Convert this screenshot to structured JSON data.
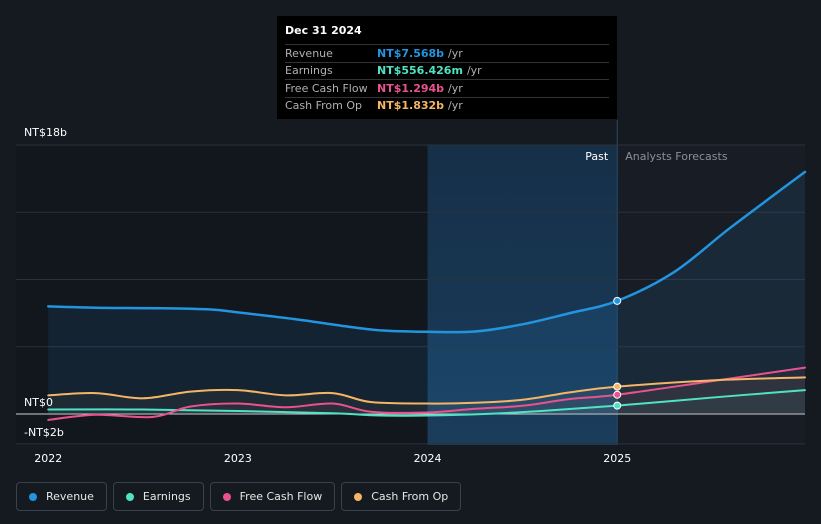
{
  "tooltip": {
    "date": "Dec 31 2024",
    "rows": [
      {
        "name": "Revenue",
        "value": "NT$7.568b",
        "unit": "/yr",
        "color": "#2394df"
      },
      {
        "name": "Earnings",
        "value": "NT$556.426m",
        "unit": "/yr",
        "color": "#4fe3c3"
      },
      {
        "name": "Free Cash Flow",
        "value": "NT$1.294b",
        "unit": "/yr",
        "color": "#e8538f"
      },
      {
        "name": "Cash From Op",
        "value": "NT$1.832b",
        "unit": "/yr",
        "color": "#f5b567"
      }
    ]
  },
  "period_labels": {
    "past": "Past",
    "forecast": "Analysts Forecasts"
  },
  "legend": [
    {
      "label": "Revenue",
      "color": "#2394df"
    },
    {
      "label": "Earnings",
      "color": "#4fe3c3"
    },
    {
      "label": "Free Cash Flow",
      "color": "#e8538f"
    },
    {
      "label": "Cash From Op",
      "color": "#f5b567"
    }
  ],
  "chart_data": {
    "type": "line",
    "y_tick_labels": [
      {
        "value": 18,
        "label": "NT$18b"
      },
      {
        "value": 0,
        "label": "NT$0"
      },
      {
        "value": -2,
        "label": "-NT$2b"
      }
    ],
    "x_tick_labels": [
      {
        "value": 2022,
        "label": "2022"
      },
      {
        "value": 2023,
        "label": "2023"
      },
      {
        "value": 2024,
        "label": "2024"
      },
      {
        "value": 2025,
        "label": "2025"
      }
    ],
    "xlim": [
      2021.83,
      2025.99
    ],
    "ylim": [
      -2,
      18
    ],
    "past_end": 2025.0,
    "highlight_start": 2024.0,
    "grid": true,
    "series": [
      {
        "name": "Revenue",
        "color": "#2394df",
        "points": [
          [
            2022.0,
            7.2
          ],
          [
            2022.3,
            7.1
          ],
          [
            2022.6,
            7.08
          ],
          [
            2022.85,
            7.0
          ],
          [
            2023.0,
            6.8
          ],
          [
            2023.3,
            6.35
          ],
          [
            2023.55,
            5.9
          ],
          [
            2023.75,
            5.6
          ],
          [
            2024.0,
            5.5
          ],
          [
            2024.25,
            5.52
          ],
          [
            2024.5,
            6.0
          ],
          [
            2024.75,
            6.75
          ],
          [
            2025.0,
            7.57
          ],
          [
            2025.3,
            9.5
          ],
          [
            2025.6,
            12.5
          ],
          [
            2025.99,
            16.2
          ]
        ]
      },
      {
        "name": "Earnings",
        "color": "#4fe3c3",
        "points": [
          [
            2022.0,
            0.3
          ],
          [
            2022.5,
            0.3
          ],
          [
            2023.0,
            0.2
          ],
          [
            2023.5,
            0.05
          ],
          [
            2023.75,
            -0.1
          ],
          [
            2024.0,
            -0.1
          ],
          [
            2024.3,
            0.0
          ],
          [
            2024.6,
            0.2
          ],
          [
            2025.0,
            0.56
          ],
          [
            2025.5,
            1.1
          ],
          [
            2025.99,
            1.6
          ]
        ]
      },
      {
        "name": "Free Cash Flow",
        "color": "#e8538f",
        "points": [
          [
            2022.0,
            -0.4
          ],
          [
            2022.25,
            -0.05
          ],
          [
            2022.55,
            -0.2
          ],
          [
            2022.75,
            0.5
          ],
          [
            2023.0,
            0.7
          ],
          [
            2023.25,
            0.45
          ],
          [
            2023.5,
            0.7
          ],
          [
            2023.7,
            0.15
          ],
          [
            2024.0,
            0.1
          ],
          [
            2024.25,
            0.35
          ],
          [
            2024.5,
            0.55
          ],
          [
            2024.75,
            1.0
          ],
          [
            2025.0,
            1.29
          ],
          [
            2025.5,
            2.2
          ],
          [
            2025.99,
            3.1
          ]
        ]
      },
      {
        "name": "Cash From Op",
        "color": "#f5b567",
        "points": [
          [
            2022.0,
            1.25
          ],
          [
            2022.25,
            1.4
          ],
          [
            2022.5,
            1.05
          ],
          [
            2022.75,
            1.5
          ],
          [
            2023.0,
            1.6
          ],
          [
            2023.25,
            1.25
          ],
          [
            2023.5,
            1.4
          ],
          [
            2023.7,
            0.8
          ],
          [
            2024.0,
            0.7
          ],
          [
            2024.25,
            0.75
          ],
          [
            2024.5,
            0.95
          ],
          [
            2024.75,
            1.45
          ],
          [
            2025.0,
            1.83
          ],
          [
            2025.5,
            2.25
          ],
          [
            2025.99,
            2.45
          ]
        ]
      }
    ]
  }
}
